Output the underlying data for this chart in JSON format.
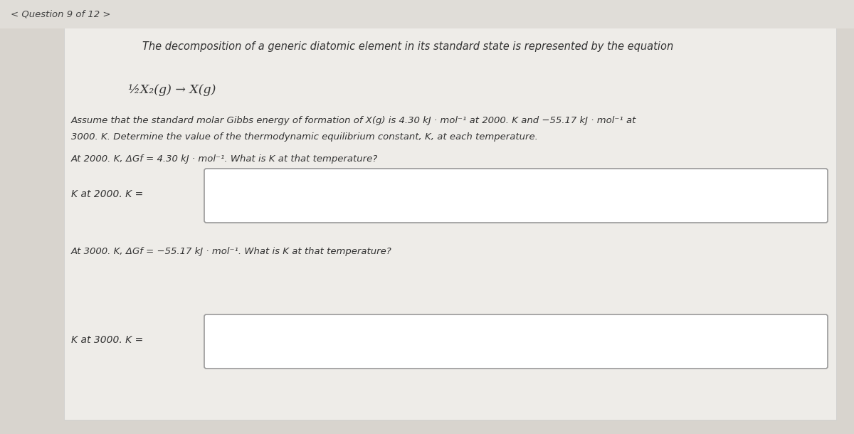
{
  "bg_color": "#d8d4ce",
  "content_bg": "#eeece8",
  "nav_text_left": "< Question 9 of 12 >",
  "title_text": "The decomposition of a generic diatomic element in its standard state is represented by the equation",
  "equation": "½X₂(g) → X(g)",
  "para_line1": "Assume that the standard molar Gibbs energy of formation of X(g) is 4.30 kJ · mol⁻¹ at 2000. K and −55.17 kJ · mol⁻¹ at",
  "para_line2": "3000. K. Determine the value of the thermodynamic equilibrium constant, K, at each temperature.",
  "q1_text": "At 2000. K, ΔGf = 4.30 kJ · mol⁻¹. What is K at that temperature?",
  "label1": "K at 2000. K =",
  "q2_text": "At 3000. K, ΔGf = −55.17 kJ · mol⁻¹. What is K at that temperature?",
  "label2": "K at 3000. K =",
  "box_color": "#ffffff",
  "box_border": "#999999",
  "text_color": "#333333",
  "nav_color": "#444444",
  "font_size_nav": 9.5,
  "font_size_title": 10.5,
  "font_size_eq": 12.5,
  "font_size_body": 9.5,
  "font_size_label": 10
}
